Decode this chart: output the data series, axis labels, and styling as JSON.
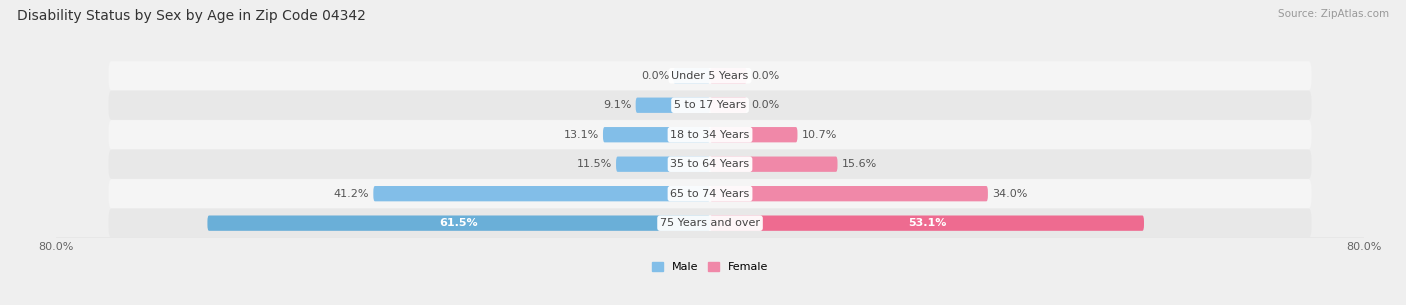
{
  "title": "Disability Status by Sex by Age in Zip Code 04342",
  "source": "Source: ZipAtlas.com",
  "age_groups": [
    "Under 5 Years",
    "5 to 17 Years",
    "18 to 34 Years",
    "35 to 64 Years",
    "65 to 74 Years",
    "75 Years and over"
  ],
  "male_values": [
    0.0,
    9.1,
    13.1,
    11.5,
    41.2,
    61.5
  ],
  "female_values": [
    0.0,
    0.0,
    10.7,
    15.6,
    34.0,
    53.1
  ],
  "male_color": "#82BEE8",
  "female_color": "#F088A8",
  "male_color_large": "#6AAFD8",
  "female_color_large": "#EE6B90",
  "axis_max": 80.0,
  "bar_height": 0.52,
  "bg_color": "#EFEFEF",
  "row_bg_even": "#F5F5F5",
  "row_bg_odd": "#E8E8E8",
  "title_fontsize": 10,
  "label_fontsize": 8,
  "tick_fontsize": 8,
  "source_fontsize": 7.5,
  "min_bar_pct": 4.5
}
